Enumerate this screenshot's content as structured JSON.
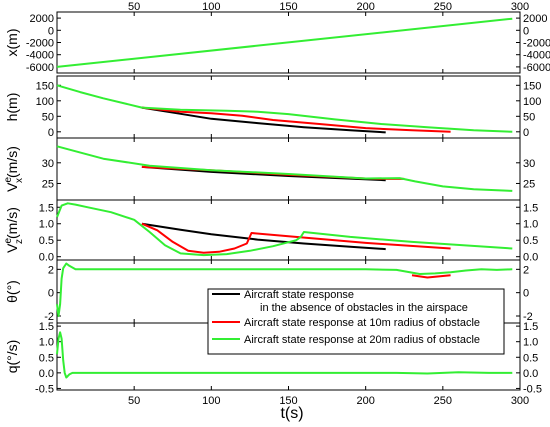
{
  "chart_data": {
    "type": "line",
    "xlabel": "t(s)",
    "x_ticks": [
      "50",
      "100",
      "150",
      "200",
      "250",
      "300"
    ],
    "xlim": [
      0,
      300
    ],
    "legend": {
      "placement": "lower-center",
      "entries": [
        {
          "key": "black",
          "color": "#000000",
          "line1": "Aircraft state response",
          "line2": "in the absence of obstacles in the airspace"
        },
        {
          "key": "red",
          "color": "#ff0000",
          "line1": "Aircraft state response at 10m radius of obstacle",
          "line2": ""
        },
        {
          "key": "green",
          "color": "#33ee33",
          "line1": "Aircraft state response at 20m radius of obstacle",
          "line2": ""
        }
      ]
    },
    "panels": [
      {
        "key": "x",
        "ylabel": "x(m)",
        "ylim": [
          -7000,
          3000
        ],
        "yticks": [
          -6000,
          -4000,
          -2000,
          0,
          2000
        ],
        "ytick_labels": [
          "-6000",
          "-4000",
          "-2000",
          "0",
          "2000"
        ],
        "series": [
          {
            "color": "green",
            "x": [
              0,
              295
            ],
            "y": [
              -6000,
              1900
            ]
          }
        ]
      },
      {
        "key": "h",
        "ylabel": "h(m)",
        "ylim": [
          -20,
          180
        ],
        "yticks": [
          0,
          50,
          100,
          150
        ],
        "ytick_labels": [
          "0",
          "50",
          "100",
          "150"
        ],
        "series": [
          {
            "color": "black",
            "x": [
              55,
              80,
              100,
              130,
              160,
              190,
              213
            ],
            "y": [
              78,
              58,
              42,
              28,
              15,
              5,
              -2
            ]
          },
          {
            "color": "red",
            "x": [
              55,
              80,
              100,
              120,
              140,
              170,
              200,
              230,
              255
            ],
            "y": [
              78,
              65,
              60,
              52,
              38,
              25,
              12,
              5,
              0
            ]
          },
          {
            "color": "green",
            "x": [
              0,
              15,
              30,
              45,
              55,
              80,
              110,
              130,
              150,
              180,
              210,
              240,
              270,
              295
            ],
            "y": [
              150,
              128,
              108,
              90,
              78,
              71,
              68,
              65,
              57,
              40,
              25,
              15,
              5,
              0
            ]
          }
        ]
      },
      {
        "key": "vx",
        "ylabel_main": "V",
        "ylabel_sup": "e",
        "ylabel_sub": "x",
        "ylabel_unit": "(m/s)",
        "ylim": [
          21,
          36
        ],
        "yticks": [
          25,
          30
        ],
        "ytick_labels": [
          "25",
          "30"
        ],
        "series": [
          {
            "color": "black",
            "x": [
              55,
              100,
              150,
              213
            ],
            "y": [
              29,
              27.8,
              26.8,
              25.8
            ]
          },
          {
            "color": "red",
            "x": [
              55,
              100,
              150,
              200,
              213,
              225
            ],
            "y": [
              29,
              28.2,
              27.1,
              26.2,
              26.1,
              26.1
            ]
          },
          {
            "color": "green",
            "x": [
              0,
              30,
              60,
              100,
              150,
              200,
              222,
              232,
              250,
              270,
              295
            ],
            "y": [
              34,
              31,
              29.3,
              28.2,
              27.3,
              26.2,
              26.3,
              25.5,
              24.3,
              23.6,
              23.2
            ]
          }
        ]
      },
      {
        "key": "vz",
        "ylabel_main": "V",
        "ylabel_sup": "e",
        "ylabel_sub": "z",
        "ylabel_unit": "(m/s)",
        "ylim": [
          -0.1,
          1.72
        ],
        "yticks": [
          0.0,
          0.5,
          1.0,
          1.5
        ],
        "ytick_labels": [
          "0.0",
          "0.5",
          "1.0",
          "1.5"
        ],
        "series": [
          {
            "color": "black",
            "x": [
              55,
              80,
              100,
              130,
              160,
              190,
              213
            ],
            "y": [
              1.0,
              0.82,
              0.68,
              0.52,
              0.4,
              0.3,
              0.23
            ]
          },
          {
            "color": "red",
            "x": [
              55,
              65,
              75,
              85,
              95,
              105,
              115,
              123,
              126,
              150,
              200,
              255
            ],
            "y": [
              1.0,
              0.8,
              0.45,
              0.18,
              0.12,
              0.15,
              0.25,
              0.4,
              0.72,
              0.62,
              0.42,
              0.25
            ]
          },
          {
            "color": "green",
            "x": [
              0,
              3,
              7,
              12,
              20,
              35,
              50,
              60,
              70,
              80,
              95,
              110,
              125,
              140,
              155,
              158,
              160,
              190,
              230,
              295
            ],
            "y": [
              1.2,
              1.55,
              1.62,
              1.58,
              1.5,
              1.35,
              1.12,
              0.75,
              0.35,
              0.1,
              0.05,
              0.08,
              0.18,
              0.32,
              0.5,
              0.6,
              0.75,
              0.6,
              0.45,
              0.25
            ]
          }
        ]
      },
      {
        "key": "theta",
        "ylabel": "θ(°)",
        "ylim": [
          -2.6,
          2.8
        ],
        "yticks": [
          -2,
          0,
          2
        ],
        "ytick_labels": [
          "-2",
          "0",
          "2"
        ],
        "series": [
          {
            "color": "red",
            "x": [
              230,
              240,
              255
            ],
            "y": [
              1.5,
              1.3,
              1.5
            ]
          },
          {
            "color": "green",
            "x": [
              0,
              1,
              2,
              3,
              4,
              6,
              8,
              12,
              20,
              200,
              220,
              235,
              245,
              255,
              265,
              275,
              285,
              295
            ],
            "y": [
              -1.0,
              -2.0,
              -1.0,
              1.2,
              2.1,
              2.5,
              2.3,
              2.0,
              2.0,
              2.0,
              1.95,
              1.6,
              1.65,
              1.75,
              1.9,
              2.0,
              1.95,
              2.0
            ]
          }
        ]
      },
      {
        "key": "q",
        "ylabel": "q(°/s)",
        "ylim": [
          -0.55,
          1.6
        ],
        "yticks": [
          -0.5,
          0.0,
          0.5,
          1.0,
          1.5
        ],
        "ytick_labels": [
          "-0.5",
          "0.0",
          "0.5",
          "1.0",
          "1.5"
        ],
        "series": [
          {
            "color": "green",
            "x": [
              0,
              1,
              2,
              3,
              4,
              5,
              6,
              7,
              8,
              10,
              15,
              30,
              220,
              240,
              260,
              280,
              295
            ],
            "y": [
              0.6,
              1.1,
              1.3,
              1.1,
              0.4,
              0.0,
              -0.15,
              -0.1,
              -0.05,
              0.0,
              0.0,
              0.0,
              0.0,
              -0.02,
              0.02,
              0.0,
              0.0
            ]
          }
        ]
      }
    ]
  }
}
